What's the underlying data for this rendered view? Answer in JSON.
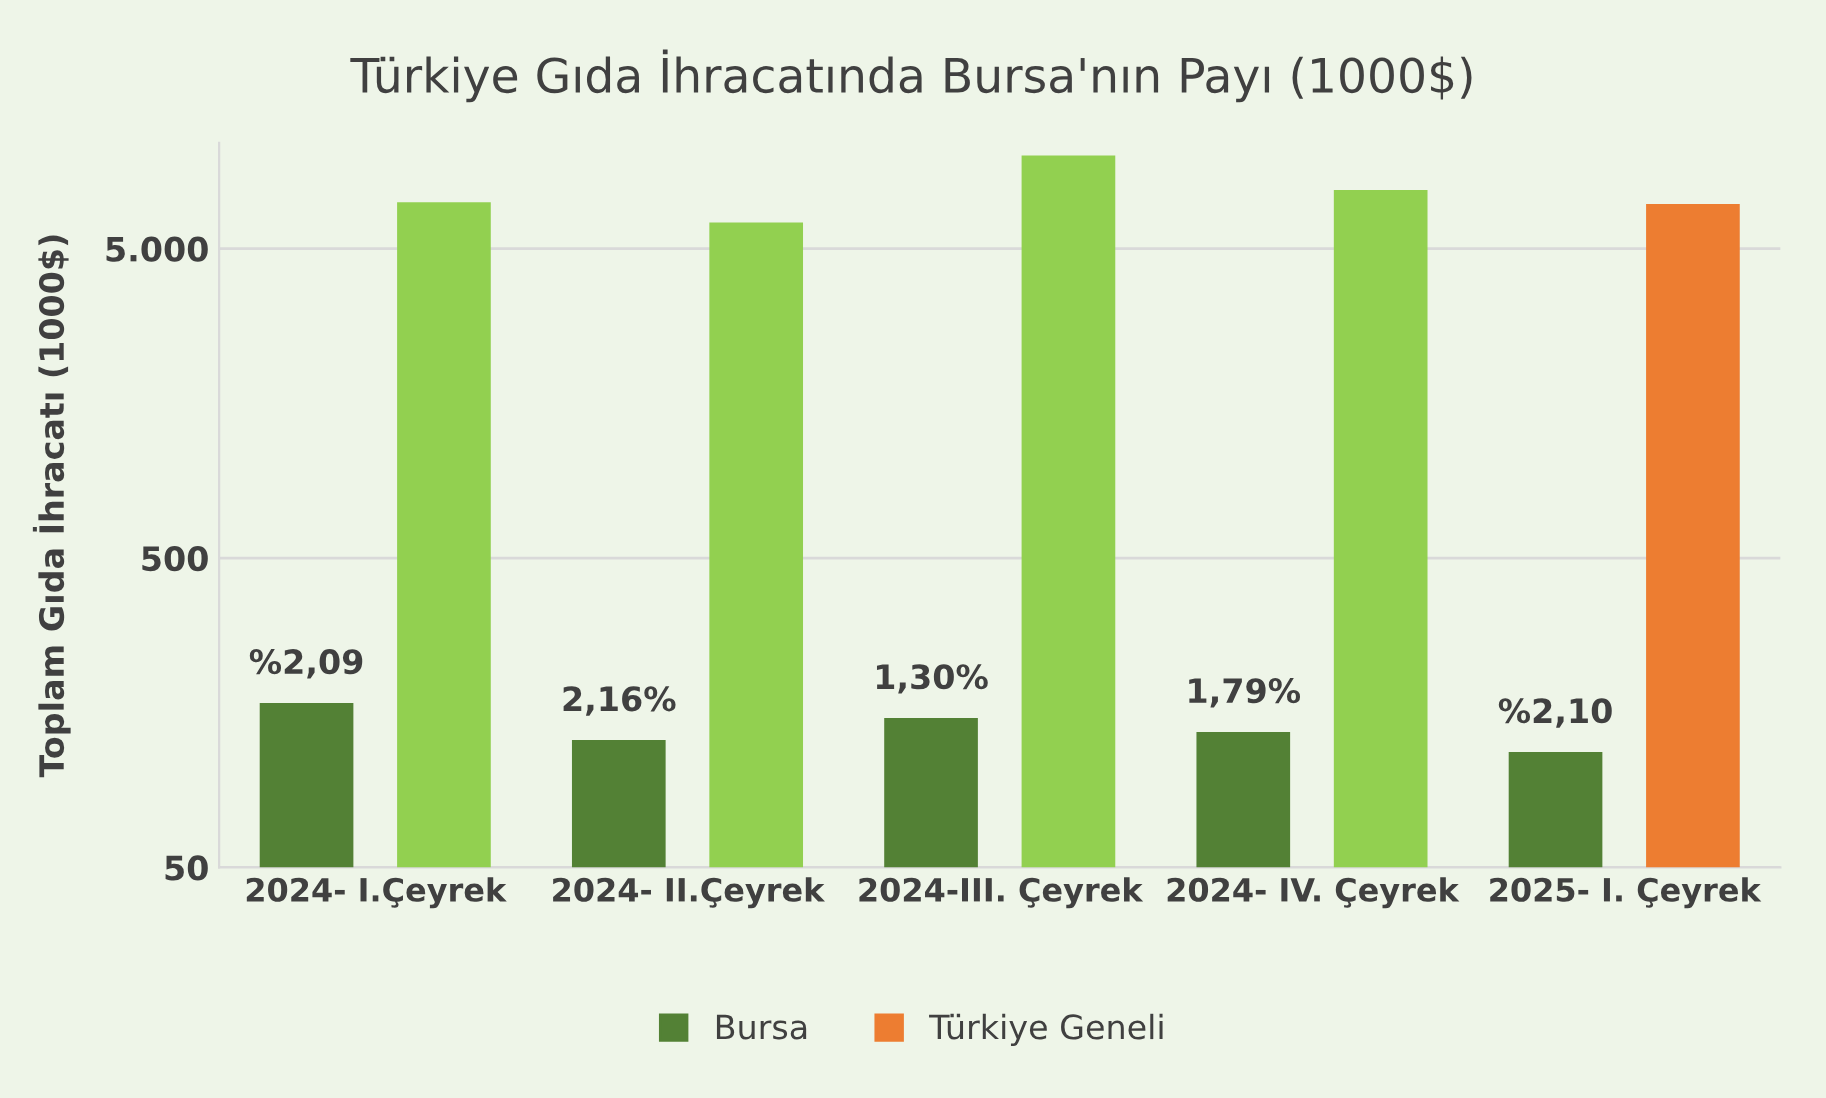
{
  "chart_data": {
    "type": "bar",
    "title": "Türkiye Gıda İhracatında Bursa'nın Payı (1000$)",
    "ylabel": "Toplam Gıda İhracatı (1000$)",
    "categories": [
      "2024- I.Çeyrek",
      "2024- II.Çeyrek",
      "2024-III. Çeyrek",
      "2024- IV. Çeyrek",
      "2025- I. Çeyrek"
    ],
    "series": [
      {
        "name": "Bursa",
        "color": "#538135",
        "values": [
          170,
          129,
          152,
          137,
          118
        ]
      },
      {
        "name": "Türkiye Geneli",
        "color": "#ed7d31",
        "colors": [
          "#92d050",
          "#92d050",
          "#92d050",
          "#92d050",
          "#ed7d31"
        ],
        "values": [
          7070,
          6080,
          10000,
          7740,
          6970
        ]
      }
    ],
    "log": "y",
    "ylim": [
      50,
      11000
    ],
    "yticks": [
      {
        "value": 50,
        "label": "50"
      },
      {
        "value": 500,
        "label": "500"
      },
      {
        "value": 5000,
        "label": "5.000"
      }
    ],
    "grid": "y",
    "legend": "bottom",
    "annotations": [
      "%2,09",
      "2,16%",
      "1,30%",
      "1,79%",
      "%2,10"
    ]
  }
}
